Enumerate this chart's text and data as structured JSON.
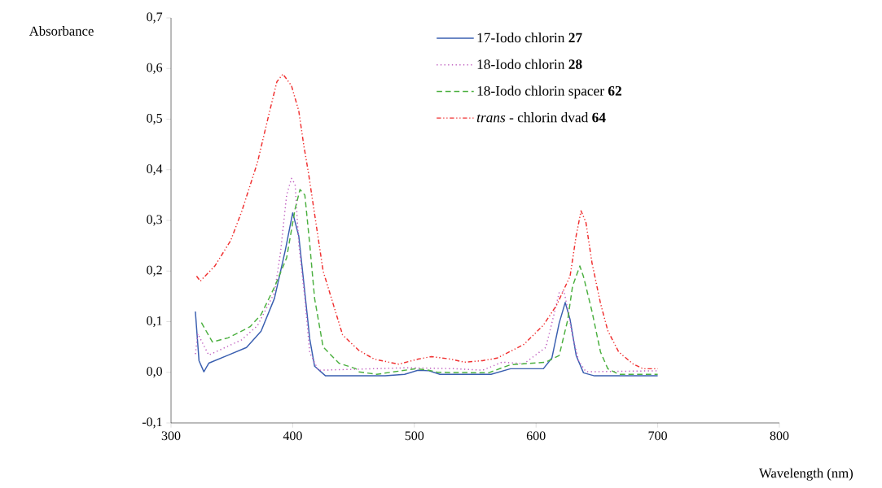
{
  "chart_data": {
    "type": "line",
    "xlabel": "Wavelength (nm)",
    "ylabel": "Absorbance",
    "xlim": [
      300,
      800
    ],
    "ylim": [
      -0.1,
      0.7
    ],
    "xticks": [
      300,
      400,
      500,
      600,
      700,
      800
    ],
    "yticks": [
      {
        "value": -0.1,
        "label": "-0,1"
      },
      {
        "value": 0,
        "label": "0,0"
      },
      {
        "value": 0.1,
        "label": "0,1"
      },
      {
        "value": 0.2,
        "label": "0,2"
      },
      {
        "value": 0.3,
        "label": "0,3"
      },
      {
        "value": 0.4,
        "label": "0,4"
      },
      {
        "value": 0.5,
        "label": "0,5"
      },
      {
        "value": 0.6,
        "label": "0,6"
      },
      {
        "value": 0.7,
        "label": "0,7"
      }
    ],
    "legend": "top right",
    "marker": "none",
    "series": [
      {
        "name": "17-Iodo chlorin **27**",
        "color": "#3a5fb0",
        "line_style": "solid",
        "x": [
          320,
          323,
          327,
          331,
          347,
          362,
          374,
          385,
          394,
          400,
          405,
          410,
          414,
          418,
          427,
          476,
          492,
          503,
          512,
          521,
          563,
          579,
          606,
          613,
          619,
          624,
          628,
          633,
          639,
          648,
          700
        ],
        "values": [
          0.12,
          0.023,
          0.001,
          0.018,
          0.034,
          0.049,
          0.081,
          0.146,
          0.242,
          0.315,
          0.269,
          0.157,
          0.066,
          0.012,
          -0.007,
          -0.007,
          -0.004,
          0.004,
          0.003,
          -0.004,
          -0.004,
          0.007,
          0.007,
          0.028,
          0.097,
          0.138,
          0.104,
          0.033,
          -0.001,
          -0.007,
          -0.007
        ]
      },
      {
        "name": "18-Iodo chlorin **28**",
        "color": "#c060c0",
        "line_style": "dotted",
        "x": [
          320,
          322,
          331,
          340,
          358,
          371,
          385,
          390,
          395,
          399,
          402,
          405,
          410,
          414,
          421,
          496,
          534,
          556,
          572,
          590,
          608,
          613,
          619,
          623,
          626,
          630,
          635,
          641,
          700
        ],
        "values": [
          0.036,
          0.076,
          0.034,
          0.044,
          0.064,
          0.092,
          0.157,
          0.237,
          0.35,
          0.383,
          0.371,
          0.253,
          0.146,
          0.039,
          0.004,
          0.009,
          0.007,
          0.004,
          0.02,
          0.017,
          0.049,
          0.097,
          0.157,
          0.16,
          0.125,
          0.071,
          0.023,
          0.001,
          0.003
        ]
      },
      {
        "name": "18-Iodo chlorin spacer **62**",
        "color": "#4cb040",
        "line_style": "dashed",
        "x": [
          325,
          334,
          347,
          365,
          374,
          385,
          395,
          402,
          406,
          410,
          414,
          418,
          425,
          438,
          452,
          454,
          469,
          501,
          512,
          519,
          561,
          579,
          608,
          619,
          626,
          630,
          636,
          639,
          646,
          653,
          659,
          668,
          700
        ],
        "values": [
          0.098,
          0.06,
          0.068,
          0.09,
          0.114,
          0.168,
          0.226,
          0.323,
          0.361,
          0.35,
          0.253,
          0.146,
          0.05,
          0.018,
          0.007,
          0.001,
          -0.004,
          0.007,
          0.004,
          0.0,
          -0.001,
          0.015,
          0.02,
          0.033,
          0.103,
          0.17,
          0.21,
          0.189,
          0.12,
          0.04,
          0.007,
          -0.004,
          -0.004
        ]
      },
      {
        "name": "*trans* - chlorin dvad **64**",
        "color": "#f03030",
        "line_style": "dashdotdotted",
        "x": [
          321,
          324,
          336,
          349,
          358,
          371,
          380,
          387,
          392,
          399,
          405,
          409,
          413,
          425,
          441,
          454,
          467,
          479,
          487,
          503,
          514,
          530,
          541,
          556,
          568,
          590,
          606,
          617,
          628,
          633,
          637,
          641,
          646,
          653,
          659,
          668,
          680,
          688,
          700
        ],
        "values": [
          0.19,
          0.18,
          0.21,
          0.26,
          0.317,
          0.414,
          0.505,
          0.574,
          0.589,
          0.566,
          0.516,
          0.45,
          0.393,
          0.2,
          0.074,
          0.044,
          0.026,
          0.02,
          0.016,
          0.026,
          0.031,
          0.026,
          0.02,
          0.023,
          0.028,
          0.055,
          0.093,
          0.133,
          0.19,
          0.27,
          0.319,
          0.296,
          0.216,
          0.136,
          0.082,
          0.04,
          0.016,
          0.007,
          0.007
        ]
      }
    ]
  }
}
